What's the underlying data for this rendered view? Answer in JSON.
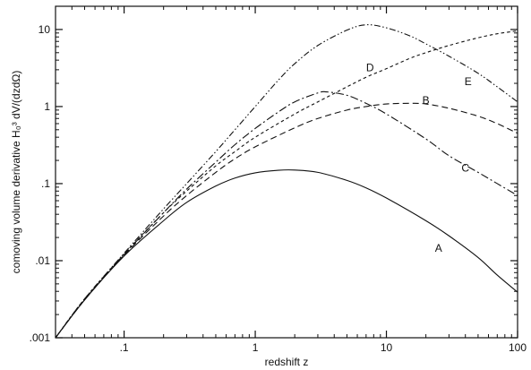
{
  "chart_data": {
    "type": "line",
    "title": "",
    "xlabel": "redshift z",
    "ylabel": "comoving volume derivative H₀³ dV/(dzdΩ)",
    "x_scale": "log",
    "y_scale": "log",
    "xlim": [
      0.03,
      100
    ],
    "ylim": [
      0.001,
      20
    ],
    "x_ticks": [
      {
        "value": 0.1,
        "label": ".1"
      },
      {
        "value": 1,
        "label": "1"
      },
      {
        "value": 10,
        "label": "10"
      },
      {
        "value": 100,
        "label": "100"
      }
    ],
    "y_ticks": [
      {
        "value": 0.001,
        "label": ".001"
      },
      {
        "value": 0.01,
        "label": ".01"
      },
      {
        "value": 0.1,
        "label": ".1"
      },
      {
        "value": 1,
        "label": "1"
      },
      {
        "value": 10,
        "label": "10"
      }
    ],
    "grid": false,
    "legend": "none",
    "series": [
      {
        "label": "A",
        "style": "solid",
        "label_position": {
          "x": 25,
          "y": 0.0145
        },
        "points": [
          [
            0.03,
            0.001
          ],
          [
            0.05,
            0.0031
          ],
          [
            0.1,
            0.0115
          ],
          [
            0.2,
            0.033
          ],
          [
            0.3,
            0.057
          ],
          [
            0.5,
            0.093
          ],
          [
            0.7,
            0.118
          ],
          [
            1,
            0.138
          ],
          [
            1.5,
            0.149
          ],
          [
            2,
            0.15
          ],
          [
            3,
            0.14
          ],
          [
            5,
            0.11
          ],
          [
            7,
            0.088
          ],
          [
            10,
            0.065
          ],
          [
            20,
            0.033
          ],
          [
            30,
            0.021
          ],
          [
            50,
            0.011
          ],
          [
            70,
            0.0065
          ],
          [
            100,
            0.0039
          ]
        ]
      },
      {
        "label": "B",
        "style": "dashed",
        "label_position": {
          "x": 20,
          "y": 1.2
        },
        "points": [
          [
            0.03,
            0.001
          ],
          [
            0.05,
            0.0031
          ],
          [
            0.1,
            0.0118
          ],
          [
            0.2,
            0.038
          ],
          [
            0.3,
            0.07
          ],
          [
            0.5,
            0.14
          ],
          [
            0.7,
            0.21
          ],
          [
            1,
            0.3
          ],
          [
            2,
            0.53
          ],
          [
            3,
            0.7
          ],
          [
            5,
            0.9
          ],
          [
            7,
            1.0
          ],
          [
            10,
            1.08
          ],
          [
            15,
            1.1
          ],
          [
            20,
            1.08
          ],
          [
            30,
            0.95
          ],
          [
            50,
            0.75
          ],
          [
            70,
            0.6
          ],
          [
            100,
            0.45
          ]
        ]
      },
      {
        "label": "C",
        "style": "dashdot",
        "label_position": {
          "x": 40,
          "y": 0.16
        },
        "points": [
          [
            0.03,
            0.001
          ],
          [
            0.05,
            0.0031
          ],
          [
            0.1,
            0.012
          ],
          [
            0.2,
            0.042
          ],
          [
            0.3,
            0.085
          ],
          [
            0.5,
            0.19
          ],
          [
            0.7,
            0.32
          ],
          [
            1,
            0.52
          ],
          [
            1.5,
            0.85
          ],
          [
            2,
            1.15
          ],
          [
            3,
            1.5
          ],
          [
            3.5,
            1.55
          ],
          [
            5,
            1.4
          ],
          [
            7,
            1.1
          ],
          [
            10,
            0.8
          ],
          [
            20,
            0.38
          ],
          [
            30,
            0.23
          ],
          [
            50,
            0.14
          ],
          [
            70,
            0.1
          ],
          [
            100,
            0.07
          ]
        ]
      },
      {
        "label": "D",
        "style": "dashdotdot",
        "label_position": {
          "x": 7.5,
          "y": 3.2
        },
        "points": [
          [
            0.03,
            0.001
          ],
          [
            0.05,
            0.0032
          ],
          [
            0.1,
            0.0125
          ],
          [
            0.2,
            0.047
          ],
          [
            0.3,
            0.1
          ],
          [
            0.5,
            0.26
          ],
          [
            0.7,
            0.5
          ],
          [
            1,
            1.0
          ],
          [
            1.5,
            2.2
          ],
          [
            2,
            3.6
          ],
          [
            3,
            6.2
          ],
          [
            5,
            9.8
          ],
          [
            7,
            11.5
          ],
          [
            10,
            10.5
          ],
          [
            15,
            8.3
          ],
          [
            20,
            6.5
          ],
          [
            30,
            4.5
          ],
          [
            50,
            2.7
          ],
          [
            70,
            1.8
          ],
          [
            100,
            1.15
          ]
        ]
      },
      {
        "label": "E",
        "style": "shortdash",
        "label_position": {
          "x": 42,
          "y": 2.1
        },
        "points": [
          [
            0.03,
            0.001
          ],
          [
            0.05,
            0.0032
          ],
          [
            0.1,
            0.0122
          ],
          [
            0.2,
            0.042
          ],
          [
            0.3,
            0.08
          ],
          [
            0.5,
            0.17
          ],
          [
            0.7,
            0.26
          ],
          [
            1,
            0.4
          ],
          [
            2,
            0.8
          ],
          [
            3,
            1.15
          ],
          [
            5,
            1.8
          ],
          [
            7,
            2.4
          ],
          [
            10,
            3.1
          ],
          [
            15,
            4.2
          ],
          [
            20,
            5.0
          ],
          [
            30,
            6.2
          ],
          [
            50,
            7.8
          ],
          [
            70,
            8.8
          ],
          [
            100,
            9.6
          ]
        ]
      }
    ]
  }
}
